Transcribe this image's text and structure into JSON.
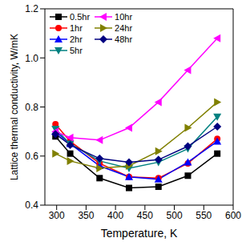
{
  "chart_data": {
    "type": "line",
    "x_label": "Temperature, K",
    "y_label": "Lattice thermal conductivity, W/mK",
    "x": [
      298,
      323,
      373,
      423,
      473,
      523,
      573
    ],
    "xlim": [
      280,
      600
    ],
    "xticks": [
      300,
      350,
      400,
      450,
      500,
      550,
      600
    ],
    "ylim": [
      0.4,
      1.2
    ],
    "yticks": [
      0.4,
      0.6,
      0.8,
      {
        "value": 1,
        "label": "1.0"
      },
      1.2
    ],
    "legend": "upper left",
    "series": [
      {
        "name": "0.5hr",
        "color": "#000000",
        "marker": "square",
        "values": [
          0.68,
          0.61,
          0.51,
          0.47,
          0.475,
          0.52,
          0.61
        ]
      },
      {
        "name": "1hr",
        "color": "#ff0000",
        "marker": "circle",
        "values": [
          0.73,
          0.66,
          0.57,
          0.515,
          0.51,
          0.57,
          0.67
        ]
      },
      {
        "name": "2hr",
        "color": "#0000ff",
        "marker": "triangle-up",
        "values": [
          0.7,
          0.65,
          0.56,
          0.515,
          0.505,
          0.575,
          0.66
        ]
      },
      {
        "name": "5hr",
        "color": "#008080",
        "marker": "triangle-down",
        "values": [
          0.71,
          0.65,
          0.58,
          0.55,
          0.575,
          0.63,
          0.76
        ]
      },
      {
        "name": "10hr",
        "color": "#ff00ff",
        "marker": "triangle-left",
        "values": [
          0.7,
          0.675,
          0.665,
          0.715,
          0.82,
          0.95,
          1.08
        ]
      },
      {
        "name": "24hr",
        "color": "#808000",
        "marker": "triangle-right",
        "values": [
          0.61,
          0.58,
          0.55,
          0.56,
          0.62,
          0.715,
          0.82
        ]
      },
      {
        "name": "48hr",
        "color": "#000080",
        "marker": "diamond",
        "values": [
          0.69,
          0.645,
          0.59,
          0.575,
          0.585,
          0.64,
          0.72
        ]
      }
    ]
  }
}
